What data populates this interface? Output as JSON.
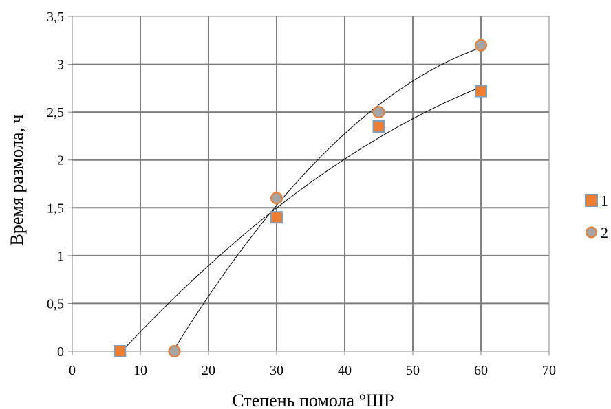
{
  "chart_data": {
    "type": "scatter",
    "xlabel": "Степень помола °ШР",
    "ylabel": "Время размола, ч",
    "xlim": [
      0,
      70
    ],
    "ylim": [
      0,
      3.5
    ],
    "x_ticks": [
      "0",
      "10",
      "20",
      "30",
      "40",
      "50",
      "60",
      "70"
    ],
    "y_ticks": [
      "0",
      "0,5",
      "1",
      "1,5",
      "2",
      "2,5",
      "3",
      "3,5"
    ],
    "grid": true,
    "legend_position": "right",
    "trendlines": true,
    "series": [
      {
        "name": "1",
        "marker": "square",
        "fill": "#ed7d31",
        "stroke": "#7f9fbf",
        "points": [
          {
            "x": 7,
            "y": 0
          },
          {
            "x": 30,
            "y": 1.4
          },
          {
            "x": 45,
            "y": 2.35
          },
          {
            "x": 60,
            "y": 2.72
          }
        ]
      },
      {
        "name": "2",
        "marker": "circle",
        "fill": "#a5a5a5",
        "stroke": "#ed7d31",
        "points": [
          {
            "x": 15,
            "y": 0
          },
          {
            "x": 30,
            "y": 1.6
          },
          {
            "x": 45,
            "y": 2.5
          },
          {
            "x": 60,
            "y": 3.2
          }
        ]
      }
    ]
  }
}
